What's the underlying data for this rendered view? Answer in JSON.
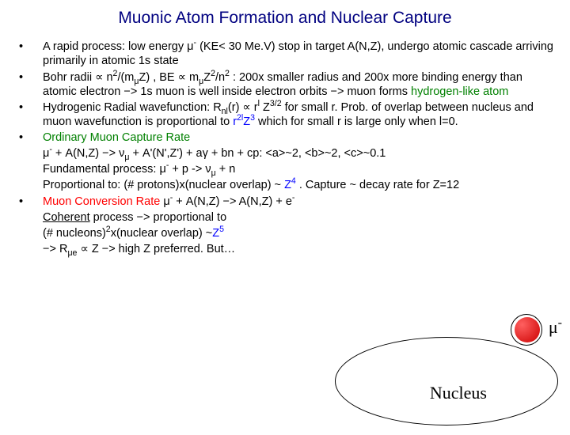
{
  "title": "Muonic Atom Formation and Nuclear Capture",
  "bullets": {
    "b1a": "A rapid process: low energy μ",
    "b1b": " (KE< 30 Me.V) stop in target A(N,Z), undergo atomic cascade arriving primarily in atomic 1s state",
    "b2a": "Bohr radii ∝ n",
    "b2b": "/(m",
    "b2c": "Z) , BE ∝ m",
    "b2d": "Z",
    "b2e": "/n",
    "b2f": " : 200x smaller radius and 200x more binding energy than atomic electron −> 1s muon is well inside electron orbits −> muon forms ",
    "b2g": "hydrogen-like atom",
    "b3a": "Hydrogenic Radial wavefunction:  R",
    "b3b": "(r) ∝ r",
    "b3c": " Z",
    "b3d": "  for small r. Prob. of overlap between nucleus and muon wavefunction is proportional to ",
    "b3e": "r",
    "b3f": "Z",
    "b3g": " which for small r is large only when l=0.",
    "b4": "Ordinary Muon Capture Rate",
    "b4s1a": "μ",
    "b4s1b": " + A(N,Z) −> ν",
    "b4s1c": " + A'(N',Z') + aγ + bn + cp: <a>~2, <b>~2, <c>~0.1",
    "b4s2a": "Fundamental process: μ",
    "b4s2b": " + p -> ν",
    "b4s2c": " + n",
    "b4s3a": "Proportional to: (# protons)x(nuclear overlap) ~ ",
    "b4s3b": "Z",
    "b4s3c": " . Capture ~ decay rate for Z=12",
    "b5a": "Muon Conversion Rate",
    "b5b": "     μ",
    "b5c": " + A(N,Z) −> A(N,Z)  + e",
    "b5s1a": "Coherent",
    "b5s1b": " process −> proportional to",
    "b5s2a": "(# nucleons)",
    "b5s2b": "x(nuclear overlap) ~",
    "b5s2c": "Z",
    "b5s3a": "−> R",
    "b5s3b": " ∝ Z −> high Z preferred. But…"
  },
  "diagram": {
    "nucleus_label": "Nucleus",
    "mu_label": "μ",
    "mu_sup": "-",
    "particle_color": "#cc0000",
    "orbit_border": "#000000",
    "background": "#ffffff"
  },
  "colors": {
    "title": "#000080",
    "green": "#008000",
    "blue": "#0000ff",
    "red": "#ff0000"
  }
}
